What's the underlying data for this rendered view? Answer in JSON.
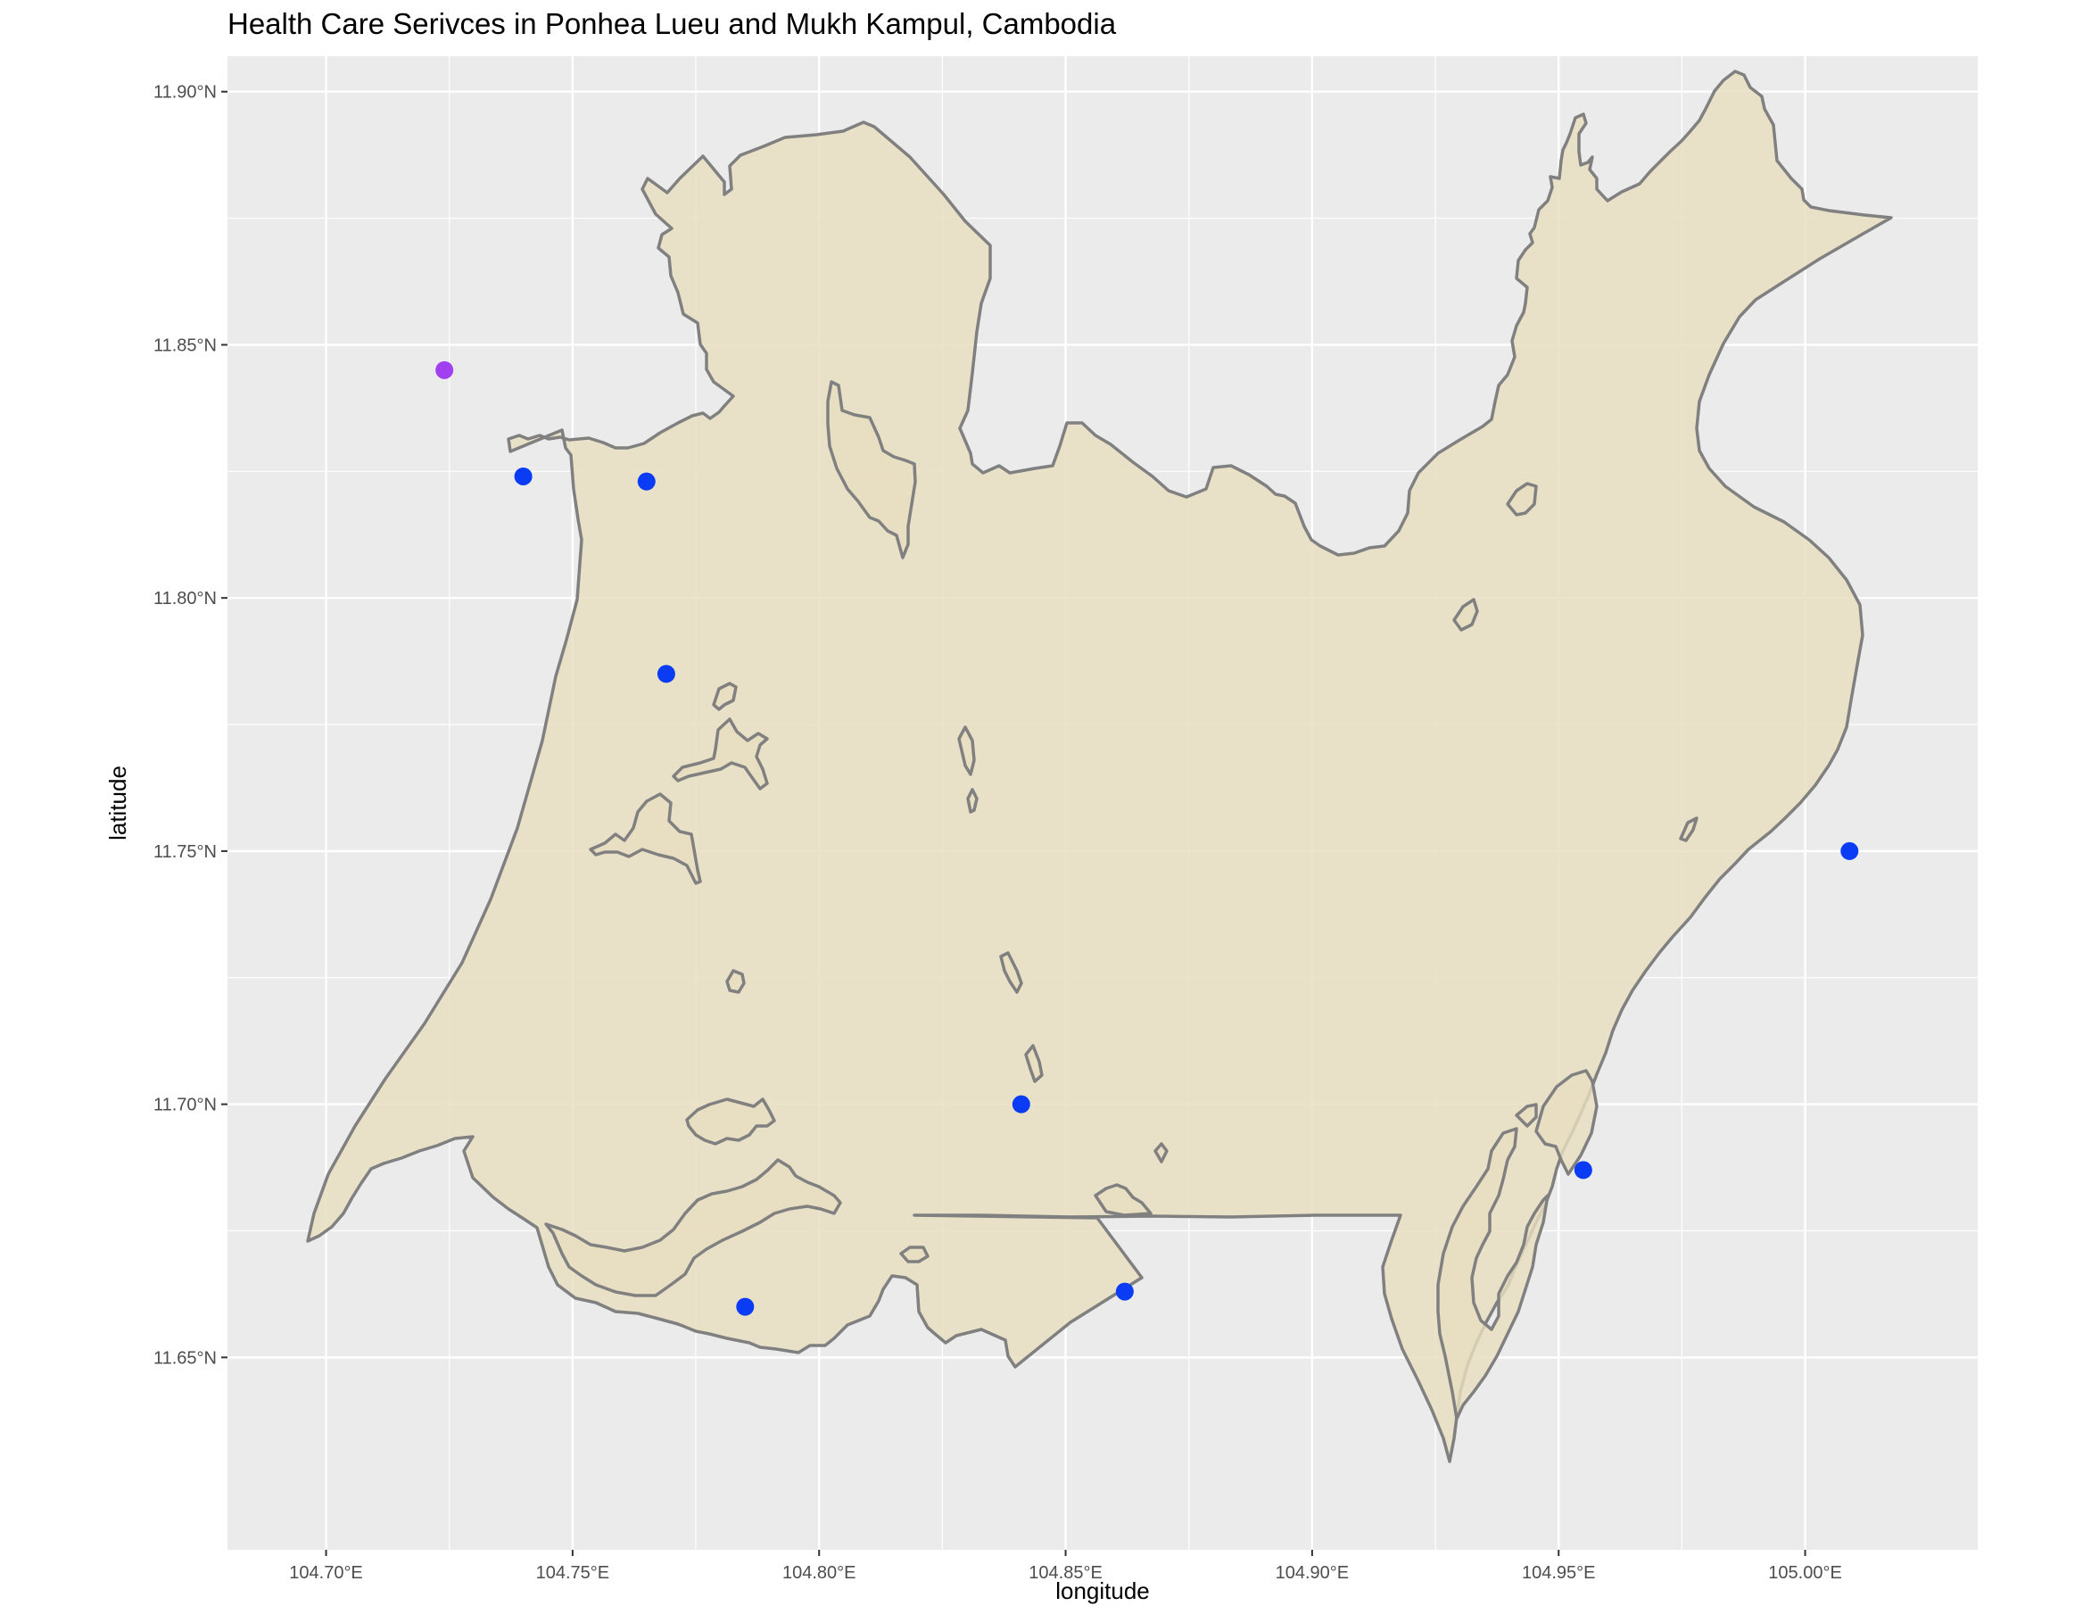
{
  "title": "Health Care Serivces in Ponhea Lueu and Mukh Kampul, Cambodia",
  "chart_data": {
    "type": "scatter",
    "title": "Health Care Serivces in Ponhea Lueu and Mukh Kampul, Cambodia",
    "xlabel": "longitude",
    "ylabel": "latitude",
    "xlim": [
      104.68,
      105.035
    ],
    "ylim": [
      11.612,
      11.907
    ],
    "x_ticks": [
      104.7,
      104.75,
      104.8,
      104.85,
      104.9,
      104.95,
      105.0
    ],
    "x_tick_labels": [
      "104.70°E",
      "104.75°E",
      "104.80°E",
      "104.85°E",
      "104.90°E",
      "104.95°E",
      "105.00°E"
    ],
    "y_ticks": [
      11.65,
      11.7,
      11.75,
      11.8,
      11.85,
      11.9
    ],
    "y_tick_labels": [
      "11.65°N",
      "11.70°N",
      "11.75°N",
      "11.80°N",
      "11.85°N",
      "11.90°N"
    ],
    "grid": true,
    "background_color": "#ebebeb",
    "gridline_color": "#ffffff",
    "region_fill_color": "#e8ddbf",
    "region_outline_color": "#808080",
    "points": [
      {
        "lon": 104.724,
        "lat": 11.845,
        "color": "#a040f0"
      },
      {
        "lon": 104.74,
        "lat": 11.824,
        "color": "#0a3cf5"
      },
      {
        "lon": 104.765,
        "lat": 11.823,
        "color": "#0a3cf5"
      },
      {
        "lon": 104.769,
        "lat": 11.785,
        "color": "#0a3cf5"
      },
      {
        "lon": 104.841,
        "lat": 11.7,
        "color": "#0a3cf5"
      },
      {
        "lon": 104.785,
        "lat": 11.66,
        "color": "#0a3cf5"
      },
      {
        "lon": 104.862,
        "lat": 11.663,
        "color": "#0a3cf5"
      },
      {
        "lon": 104.955,
        "lat": 11.687,
        "color": "#0a3cf5"
      },
      {
        "lon": 105.009,
        "lat": 11.75,
        "color": "#0a3cf5"
      }
    ]
  }
}
